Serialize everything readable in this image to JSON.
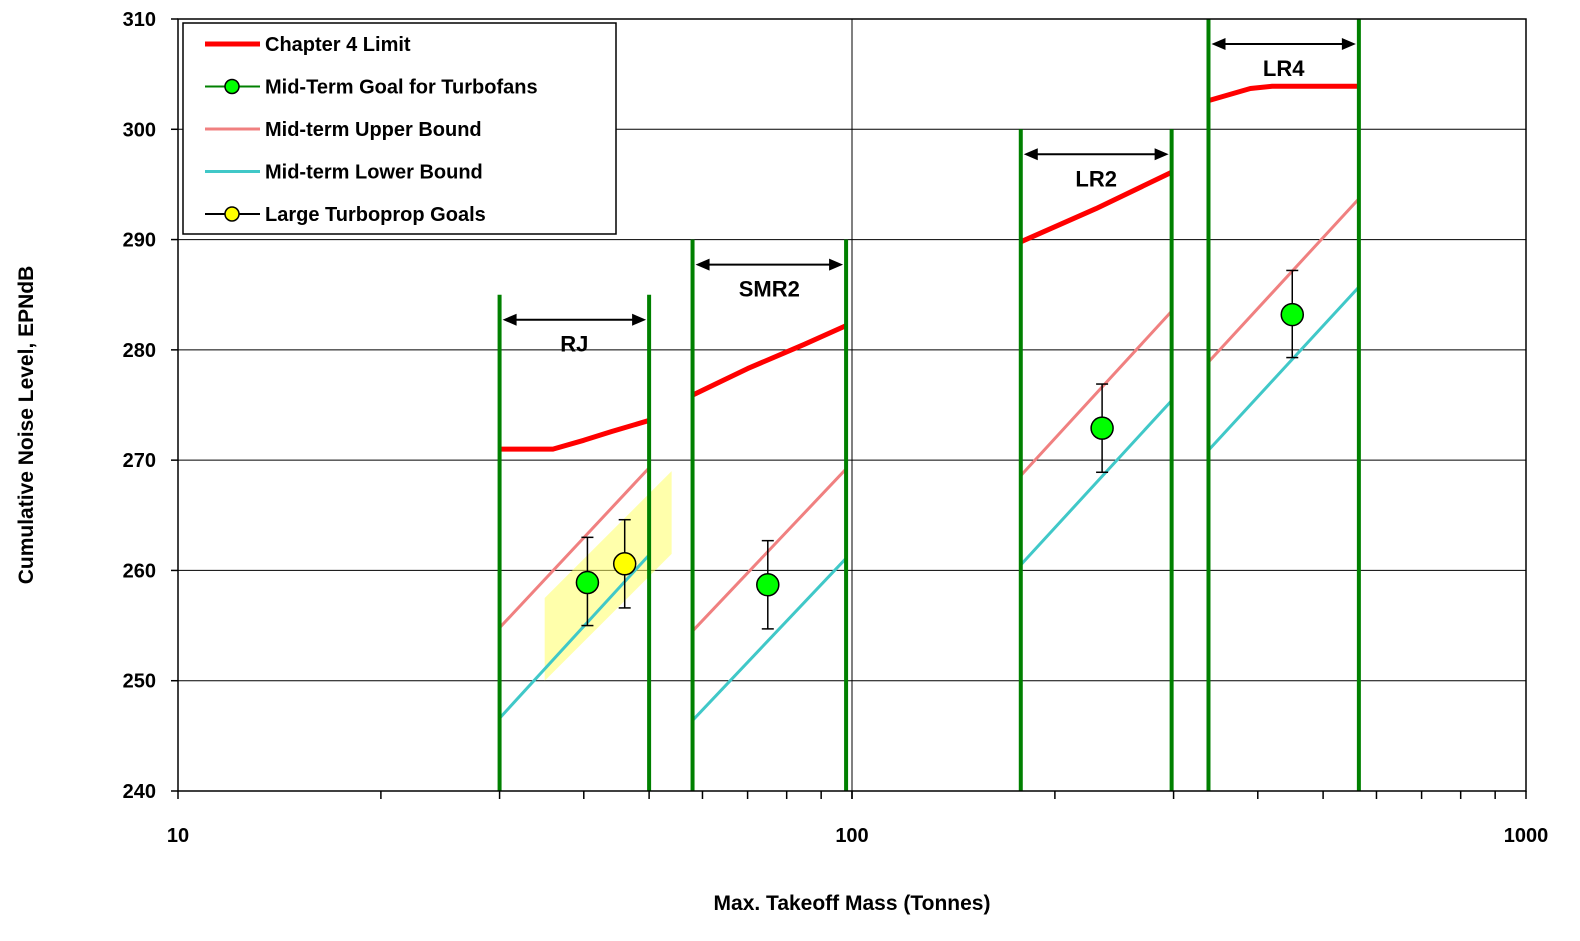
{
  "chart_data": {
    "type": "line",
    "title": "",
    "xlabel": "Max. Takeoff Mass (Tonnes)",
    "ylabel": "Cumulative Noise Level, EPNdB",
    "xscale": "log",
    "xlim": [
      10,
      1000
    ],
    "ylim": [
      240,
      310
    ],
    "xticks": [
      10,
      100,
      1000
    ],
    "yticks": [
      240,
      250,
      260,
      270,
      280,
      290,
      300,
      310
    ],
    "grid": true,
    "legend_position": "top-left",
    "colors": {
      "chapter4": "#ff0000",
      "goal_turbofan": "#00ff00",
      "upper": "#f08080",
      "lower": "#40c8c8",
      "turboprop": "#ffff00",
      "boundary": "#008000",
      "shade": "#ffff66"
    },
    "legend": [
      {
        "key": "chapter4",
        "label": "Chapter 4 Limit",
        "style": "line"
      },
      {
        "key": "goal_turbofan",
        "label": "Mid-Term Goal for Turbofans",
        "style": "marker-line"
      },
      {
        "key": "upper",
        "label": "Mid-term Upper Bound",
        "style": "line"
      },
      {
        "key": "lower",
        "label": "Mid-term Lower Bound",
        "style": "line"
      },
      {
        "key": "turboprop",
        "label": "Large Turboprop Goals",
        "style": "marker-line"
      }
    ],
    "regions": [
      {
        "name": "RJ",
        "x_min": 30,
        "x_max": 50,
        "boundary_top": 285
      },
      {
        "name": "SMR2",
        "x_min": 58,
        "x_max": 98,
        "boundary_top": 290
      },
      {
        "name": "LR2",
        "x_min": 178,
        "x_max": 298,
        "boundary_top": 300
      },
      {
        "name": "LR4",
        "x_min": 338,
        "x_max": 565,
        "boundary_top": 310
      }
    ],
    "series": [
      {
        "key": "chapter4",
        "segments": [
          [
            [
              30,
              271
            ],
            [
              36,
              271
            ],
            [
              40,
              271.8
            ],
            [
              44,
              272.6
            ],
            [
              50,
              273.6
            ]
          ],
          [
            [
              58,
              275.9
            ],
            [
              70,
              278.3
            ],
            [
              85,
              280.5
            ],
            [
              98,
              282.2
            ]
          ],
          [
            [
              178,
              289.8
            ],
            [
              230,
              292.8
            ],
            [
              298,
              296.1
            ]
          ],
          [
            [
              338,
              302.6
            ],
            [
              390,
              303.7
            ],
            [
              420,
              303.9
            ],
            [
              565,
              303.9
            ]
          ]
        ]
      },
      {
        "key": "upper",
        "segments": [
          [
            [
              30,
              254.8
            ],
            [
              50,
              269.3
            ]
          ],
          [
            [
              58,
              254.5
            ],
            [
              98,
              269.2
            ]
          ],
          [
            [
              178,
              268.6
            ],
            [
              298,
              283.5
            ]
          ],
          [
            [
              338,
              278.9
            ],
            [
              565,
              293.7
            ]
          ]
        ]
      },
      {
        "key": "lower",
        "segments": [
          [
            [
              30,
              246.6
            ],
            [
              50,
              261.4
            ]
          ],
          [
            [
              58,
              246.4
            ],
            [
              98,
              261.1
            ]
          ],
          [
            [
              178,
              260.5
            ],
            [
              298,
              275.4
            ]
          ],
          [
            [
              338,
              270.9
            ],
            [
              565,
              285.7
            ]
          ]
        ]
      }
    ],
    "goal_points": [
      {
        "key": "goal_turbofan",
        "x": 40.5,
        "y": 258.9,
        "err_low": 255,
        "err_high": 263
      },
      {
        "key": "turboprop",
        "x": 46,
        "y": 260.6,
        "err_low": 256.6,
        "err_high": 264.6
      },
      {
        "key": "goal_turbofan",
        "x": 75,
        "y": 258.7,
        "err_low": 254.7,
        "err_high": 262.7
      },
      {
        "key": "goal_turbofan",
        "x": 235,
        "y": 272.9,
        "err_low": 268.9,
        "err_high": 276.9
      },
      {
        "key": "goal_turbofan",
        "x": 450,
        "y": 283.2,
        "err_low": 279.3,
        "err_high": 287.2
      }
    ],
    "shaded_band": {
      "x_left": 35,
      "x_right": 54,
      "y_bottom_left": 250,
      "y_top_left": 257.5,
      "y_bottom_right": 261.5,
      "y_top_right": 269
    }
  }
}
